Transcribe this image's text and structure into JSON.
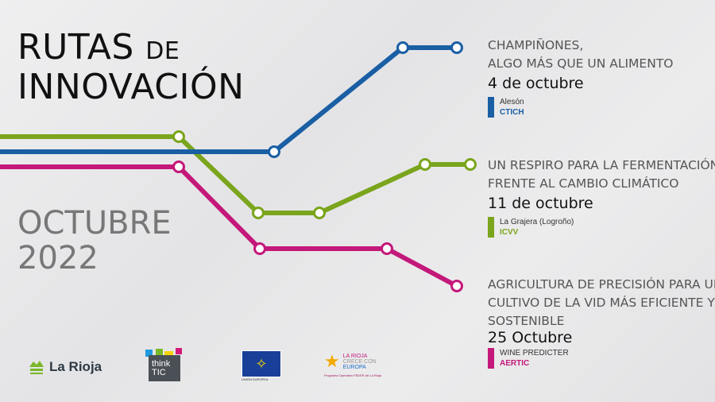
{
  "title": {
    "line1": "RUTAS",
    "line1_small": "DE",
    "line2": "INNOVACIÓN"
  },
  "period": {
    "month": "OCTUBRE",
    "year": "2022"
  },
  "colors": {
    "blue": "#1a5fa4",
    "green": "#7aa51c",
    "magenta": "#c4187a"
  },
  "events": [
    {
      "title_lines": [
        "CHAMPIÑONES,",
        "ALGO MÁS QUE UN ALIMENTO"
      ],
      "date": "4 de octubre",
      "location": "Alesón",
      "organizer": "CTICH",
      "color": "#1a5fa4"
    },
    {
      "title_lines": [
        "UN RESPIRO PARA LA FERMENTACIÓN",
        "FRENTE AL CAMBIO CLIMÁTICO"
      ],
      "date": "11 de octubre",
      "location": "La Grajera (Logroño)",
      "organizer": "ICVV",
      "color": "#7aa51c"
    },
    {
      "title_lines": [
        "AGRICULTURA DE PRECISIÓN PARA UN",
        "CULTIVO DE LA VID MÁS EFICIENTE Y",
        "SOSTENIBLE"
      ],
      "date": "25 Octubre",
      "location": "WINE PREDICTER",
      "organizer": "AERTIC",
      "color": "#c4187a"
    }
  ],
  "logos": {
    "larioja": "La Rioja",
    "thinktic": [
      "think",
      "TIC"
    ],
    "ue": "UNIÓN EUROPEA",
    "feder": [
      "LA RIOJA",
      "CRECE CON",
      "EUROPA",
      "Programa Operativo FEDER de La Rioja"
    ]
  }
}
